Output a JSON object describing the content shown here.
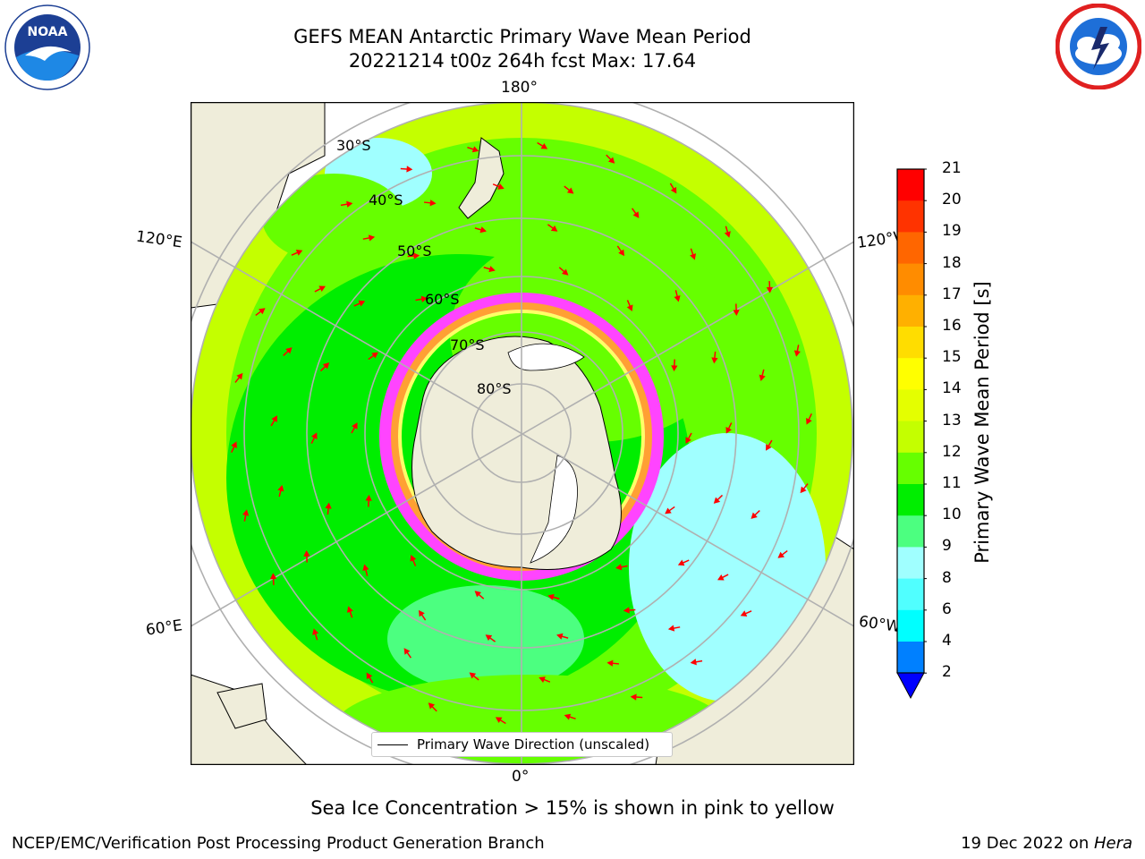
{
  "header": {
    "title_line1": "GEFS MEAN Antarctic Primary Wave Mean Period",
    "title_line2": "20221214 t00z 264h fcst   Max: 17.64"
  },
  "logos": {
    "noaa_text": "NOAA",
    "noaa_icon": "noaa-logo-icon",
    "nws_icon": "nws-logo-icon"
  },
  "map": {
    "projection": "south-polar-stereographic",
    "lon_labels": [
      "180°",
      "120°E",
      "120°W",
      "60°E",
      "60°W",
      "0°"
    ],
    "lat_labels": [
      "30°S",
      "40°S",
      "50°S",
      "60°S",
      "70°S",
      "80°S"
    ],
    "land_color": "#efedda",
    "ocean_colors": [
      "#c4ff00",
      "#66ff00",
      "#00ee00",
      "#4cff80",
      "#a0ffff"
    ],
    "arrow_color": "#ff0000",
    "sea_ice_colors": [
      "#ff44ff",
      "#ffa033",
      "#ffff66",
      "#2244ff"
    ]
  },
  "legend": {
    "label": "Primary Wave Direction (unscaled)"
  },
  "colorbar": {
    "label": "Primary Wave Mean Period [s]",
    "ticks": [
      "21",
      "20",
      "19",
      "18",
      "17",
      "16",
      "15",
      "14",
      "13",
      "12",
      "11",
      "10",
      "9",
      "8",
      "6",
      "4",
      "2"
    ],
    "colors": [
      "#ff0000",
      "#ff3300",
      "#ff6600",
      "#ff8c00",
      "#ffb000",
      "#ffdd00",
      "#ffff00",
      "#e4ff00",
      "#c4ff00",
      "#66ff00",
      "#00ee00",
      "#4cff80",
      "#a0ffff",
      "#50ffff",
      "#00ffff",
      "#0080ff",
      "#0000ff"
    ]
  },
  "footer": {
    "note": "Sea Ice Concentration > 15% is shown in pink to yellow",
    "left": "NCEP/EMC/Verification Post Processing Product Generation Branch",
    "right_prefix": "19 Dec 2022 on ",
    "right_machine": "Hera"
  }
}
